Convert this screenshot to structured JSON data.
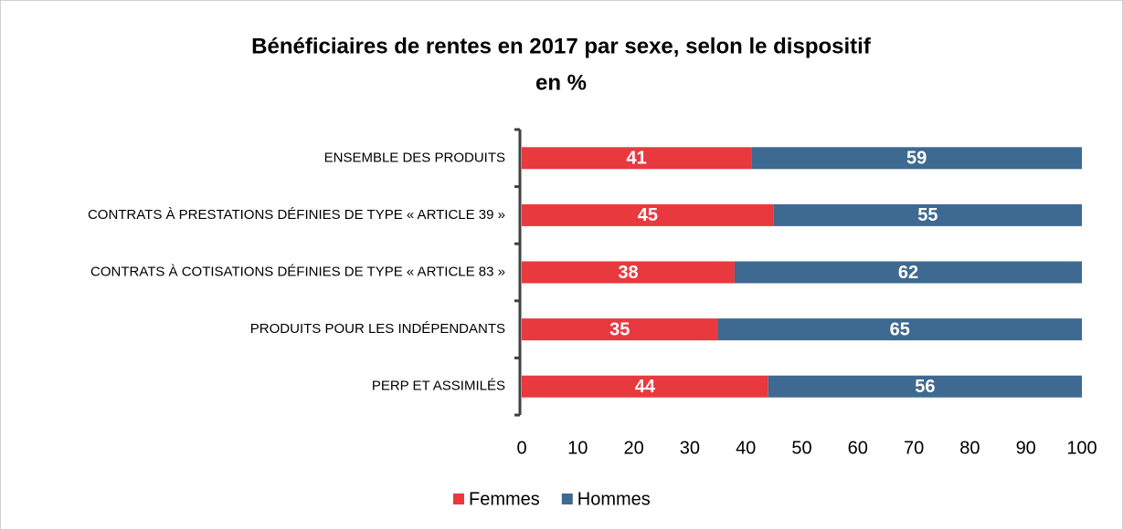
{
  "chart_data": {
    "type": "stacked_barh",
    "title": "Bénéficiaires de rentes en 2017 par sexe, selon le dispositif",
    "subtitle": "en %",
    "categories": [
      "ENSEMBLE DES PRODUITS",
      "CONTRATS À PRESTATIONS DÉFINIES DE TYPE « ARTICLE 39 »",
      "CONTRATS À COTISATIONS DÉFINIES DE TYPE « ARTICLE 83 »",
      "PRODUITS POUR LES INDÉPENDANTS",
      "PERP ET ASSIMILÉS"
    ],
    "series": [
      {
        "name": "Femmes",
        "color": "#e8393f",
        "values": [
          41,
          45,
          38,
          35,
          44
        ]
      },
      {
        "name": "Hommes",
        "color": "#3e6991",
        "values": [
          59,
          55,
          62,
          65,
          56
        ]
      }
    ],
    "xlim": [
      0,
      100
    ],
    "xticks": [
      0,
      10,
      20,
      30,
      40,
      50,
      60,
      70,
      80,
      90,
      100
    ],
    "grid": false,
    "legend": "bottom"
  }
}
